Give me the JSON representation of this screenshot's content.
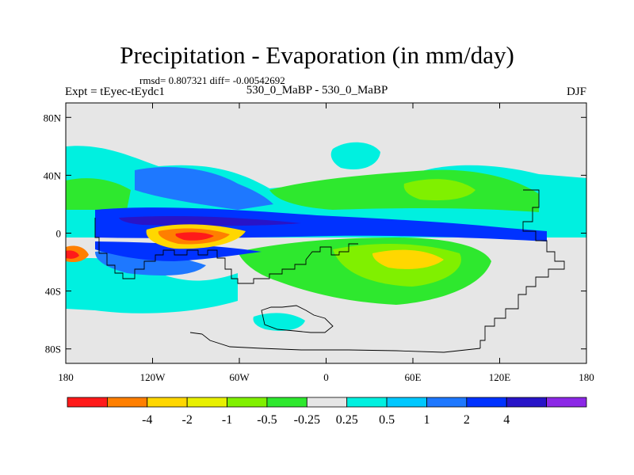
{
  "title": "Precipitation - Evaporation (in mm/day)",
  "stats_text": "rmsd= 0.807321 diff= -0.00542692",
  "expt_label": "Expt = tEyec-tEydc1",
  "case_label": "530_0_MaBP - 530_0_MaBP",
  "season": "DJF",
  "axes": {
    "lat_ticks": [
      {
        "label": "80N",
        "lat": 80
      },
      {
        "label": "40N",
        "lat": 40
      },
      {
        "label": "0",
        "lat": 0
      },
      {
        "label": "40S",
        "lat": -40
      },
      {
        "label": "80S",
        "lat": -80
      }
    ],
    "lon_ticks": [
      {
        "label": "180",
        "lon": -180
      },
      {
        "label": "120W",
        "lon": -120
      },
      {
        "label": "60W",
        "lon": -60
      },
      {
        "label": "0",
        "lon": 0
      },
      {
        "label": "60E",
        "lon": 60
      },
      {
        "label": "120E",
        "lon": 120
      },
      {
        "label": "180",
        "lon": 180
      }
    ],
    "lon_range": [
      -180,
      180
    ],
    "lat_range": [
      -90,
      90
    ]
  },
  "colorbar": {
    "colors": [
      "#ff1a1a",
      "#ff7f00",
      "#ffd700",
      "#e8f000",
      "#80f000",
      "#2ee82e",
      "#e6e6e6",
      "#00f0e0",
      "#00c8ff",
      "#1e78ff",
      "#0032ff",
      "#2814c8",
      "#8c28e6"
    ],
    "labels": [
      "-4",
      "-2",
      "-1",
      "-0.5",
      "-0.25",
      "0.25",
      "0.5",
      "1",
      "2",
      "4"
    ]
  },
  "colors": {
    "background_field": "#e6e6e6",
    "strong_negative": "#ff1a1a",
    "moderate_negative": "#ff7f00",
    "weak_negative": "#ffd700",
    "light_negative": "#80f000",
    "slight_negative": "#2ee82e",
    "slight_positive": "#00f0e0",
    "light_positive": "#00c8ff",
    "moderate_positive": "#1e78ff",
    "strong_positive": "#0032ff",
    "very_strong_positive": "#2814c8"
  }
}
